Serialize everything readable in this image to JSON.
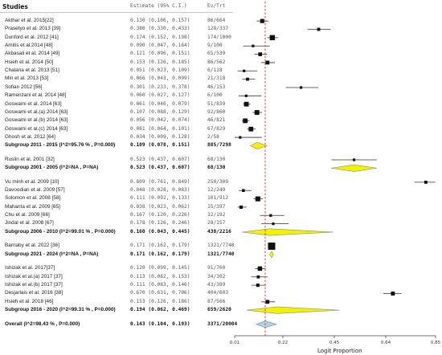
{
  "header": {
    "studies": "Studies",
    "estimate": "Estimate (95% C.I.)",
    "ev": "Ev/Trt"
  },
  "chart_data": {
    "type": "forest",
    "xlabel": "Logit Proportion",
    "x_ticks": [
      "0.01",
      "0.22",
      "0.45",
      "0.64",
      "0.85"
    ],
    "x_tick_values": [
      0.01,
      0.22,
      0.45,
      0.64,
      0.85
    ],
    "reference_line": 0.143,
    "rows": [
      {
        "kind": "study",
        "label": "Akthar et al. 2015[22]",
        "estimate": "0.130 (0.106, 0.157)",
        "ev": "86/664",
        "est": 0.13,
        "lo": 0.106,
        "hi": 0.157
      },
      {
        "kind": "study",
        "label": "Prasetyo et al. 2013 [39]",
        "estimate": "0.380 (0.330, 0.433)",
        "ev": "128/337",
        "est": 0.38,
        "lo": 0.33,
        "hi": 0.433
      },
      {
        "kind": "study",
        "label": "Dunford et al. 2012 [41]",
        "estimate": "0.174 (0.152, 0.198)",
        "ev": "174/1000",
        "est": 0.174,
        "lo": 0.152,
        "hi": 0.198
      },
      {
        "kind": "study",
        "label": "Amitis et al.2014  [48]",
        "estimate": "0.090 (0.047, 0.164)",
        "ev": "9/100",
        "est": 0.09,
        "lo": 0.047,
        "hi": 0.164
      },
      {
        "kind": "study",
        "label": "Akbasali et al. 2014 [49]",
        "estimate": "0.121 (0.096, 0.151)",
        "ev": "65/539",
        "est": 0.121,
        "lo": 0.096,
        "hi": 0.151
      },
      {
        "kind": "study",
        "label": "Hsieh et al. 2014 [50]",
        "estimate": "0.153 (0.126, 0.185)",
        "ev": "86/562",
        "est": 0.153,
        "lo": 0.126,
        "hi": 0.185
      },
      {
        "kind": "study",
        "label": "Chalana et al. 2013 [51]",
        "estimate": "0.051 (0.023, 0.109)",
        "ev": "6/118",
        "est": 0.051,
        "lo": 0.023,
        "hi": 0.109
      },
      {
        "kind": "study",
        "label": "Min et al. 2013  [53]",
        "estimate": "0.066 (0.043, 0.099)",
        "ev": "21/318",
        "est": 0.066,
        "lo": 0.043,
        "hi": 0.099
      },
      {
        "kind": "study",
        "label": "Sofian 2012 [56]",
        "estimate": "0.301 (0.233, 0.378)",
        "ev": "46/153",
        "est": 0.301,
        "lo": 0.233,
        "hi": 0.378
      },
      {
        "kind": "study",
        "label": "Ramenzani et al. 2014 [48]",
        "estimate": "0.060 (0.027, 0.127)",
        "ev": "6/100",
        "est": 0.06,
        "lo": 0.027,
        "hi": 0.127
      },
      {
        "kind": "study",
        "label": "Goswami et al. 2014 [63]",
        "estimate": "0.061 (0.046, 0.079)",
        "ev": "51/839",
        "est": 0.061,
        "lo": 0.046,
        "hi": 0.079
      },
      {
        "kind": "study",
        "label": "Goswami et al.(a) 2014 [63]",
        "estimate": "0.107 (0.088, 0.129)",
        "ev": "92/860",
        "est": 0.107,
        "lo": 0.088,
        "hi": 0.129
      },
      {
        "kind": "study",
        "label": "Goswami et al.(b) 2014 [63]",
        "estimate": "0.056 (0.042, 0.074)",
        "ev": "46/821",
        "est": 0.056,
        "lo": 0.042,
        "hi": 0.074
      },
      {
        "kind": "study",
        "label": "Goswami et al.(c) 2014 [63]",
        "estimate": "0.081 (0.064, 0.101)",
        "ev": "67/829",
        "est": 0.081,
        "lo": 0.064,
        "hi": 0.101
      },
      {
        "kind": "study",
        "label": "Ghosh et al. 2012 [64]",
        "estimate": "0.034 (0.009, 0.128)",
        "ev": "2/58",
        "est": 0.034,
        "lo": 0.009,
        "hi": 0.128
      },
      {
        "kind": "subtotal",
        "label": "Subgroup 2011 - 2015 (I^2=95.76 % , P=0.000)",
        "estimate": "0.109 (0.078, 0.151)",
        "ev": "885/7298",
        "est": 0.109,
        "lo": 0.078,
        "hi": 0.151
      },
      {
        "kind": "gap"
      },
      {
        "kind": "study",
        "label": "Ruslin et al. 2001 [32]",
        "estimate": "0.523 (0.437, 0.607)",
        "ev": "68/130",
        "est": 0.523,
        "lo": 0.437,
        "hi": 0.607
      },
      {
        "kind": "subtotal",
        "label": "Subgroup 2001 - 2005 (I^2=NA , P=NA)",
        "estimate": "0.523 (0.437, 0.607)",
        "ev": "68/130",
        "est": 0.523,
        "lo": 0.437,
        "hi": 0.607
      },
      {
        "kind": "gap"
      },
      {
        "kind": "study",
        "label": "Vu minh et al. 2009 [10]",
        "estimate": "0.809 (0.761, 0.849)",
        "ev": "250/309",
        "est": 0.809,
        "lo": 0.761,
        "hi": 0.849
      },
      {
        "kind": "study",
        "label": "Davoodian et al. 2009 [57]",
        "estimate": "0.048 (0.028, 0.083)",
        "ev": "12/249",
        "est": 0.048,
        "lo": 0.028,
        "hi": 0.083
      },
      {
        "kind": "study",
        "label": "Solomon et al. 2008 [58]",
        "estimate": "0.111 (0.092, 0.133)",
        "ev": "101/912",
        "est": 0.111,
        "lo": 0.092,
        "hi": 0.133
      },
      {
        "kind": "study",
        "label": "Mahanta et al. 2009 [65]",
        "estimate": "0.038 (0.023, 0.062)",
        "ev": "15/397",
        "est": 0.038,
        "lo": 0.023,
        "hi": 0.062
      },
      {
        "kind": "study",
        "label": "Chu et al. 2009 [66]",
        "estimate": "0.167 (0.120, 0.226)",
        "ev": "32/192",
        "est": 0.167,
        "lo": 0.12,
        "hi": 0.226
      },
      {
        "kind": "study",
        "label": "Jindal et al. 2008 [67]",
        "estimate": "0.178 (0.126, 0.246)",
        "ev": "28/157",
        "est": 0.178,
        "lo": 0.126,
        "hi": 0.246
      },
      {
        "kind": "subtotal",
        "label": "Subgroup 2006 - 2010 (I^2=99.01 % , P=0.000)",
        "estimate": "0.160 (0.043, 0.445)",
        "ev": "438/2216",
        "est": 0.16,
        "lo": 0.043,
        "hi": 0.445
      },
      {
        "kind": "gap"
      },
      {
        "kind": "study",
        "label": "Barnaby et al. 2022 [36]",
        "estimate": "0.171 (0.162, 0.179)",
        "ev": "1321/7740",
        "est": 0.171,
        "lo": 0.162,
        "hi": 0.179
      },
      {
        "kind": "subtotal",
        "label": "Subgroup 2021 - 2024 (I^2=NA , P=NA)",
        "estimate": "0.171 (0.162, 0.179)",
        "ev": "1321/7740",
        "est": 0.171,
        "lo": 0.162,
        "hi": 0.179
      },
      {
        "kind": "gap"
      },
      {
        "kind": "study",
        "label": "Ishizak et al. 2017[37]",
        "estimate": "0.120 (0.099, 0.145)",
        "ev": "91/760",
        "est": 0.12,
        "lo": 0.099,
        "hi": 0.145
      },
      {
        "kind": "study",
        "label": "Ishizak et al.(a) 2017 [37]",
        "estimate": "0.113 (0.082, 0.153)",
        "ev": "34/302",
        "est": 0.113,
        "lo": 0.082,
        "hi": 0.153
      },
      {
        "kind": "study",
        "label": "Ishizak et al.(b) 2017 [37]",
        "estimate": "0.111 (0.083, 0.146)",
        "ev": "43/389",
        "est": 0.111,
        "lo": 0.083,
        "hi": 0.146
      },
      {
        "kind": "study",
        "label": "Desjarlais et al. 2016 [38]",
        "estimate": "0.670 (0.631, 0.706)",
        "ev": "404/603",
        "est": 0.67,
        "lo": 0.631,
        "hi": 0.706
      },
      {
        "kind": "study",
        "label": "Hsieh et al. 2018 [46]",
        "estimate": "0.153 (0.126, 0.186)",
        "ev": "87/566",
        "est": 0.153,
        "lo": 0.126,
        "hi": 0.186
      },
      {
        "kind": "subtotal",
        "label": "Subgroup 2016 - 2020 (I^2=99.31 % , P=0.000)",
        "estimate": "0.194 (0.062, 0.469)",
        "ev": "659/2620",
        "est": 0.194,
        "lo": 0.062,
        "hi": 0.469
      },
      {
        "kind": "gap"
      },
      {
        "kind": "overall",
        "label": "Overall (I^2=98.43 % , P=0.000)",
        "estimate": "0.143 (0.104, 0.193)",
        "ev": "3371/20004",
        "est": 0.143,
        "lo": 0.104,
        "hi": 0.193
      }
    ]
  },
  "colors": {
    "diamond_subtotal": "#f2f200",
    "diamond_overall": "#a8d4e6",
    "ref_line": "#e03030",
    "marker": "#111111"
  }
}
